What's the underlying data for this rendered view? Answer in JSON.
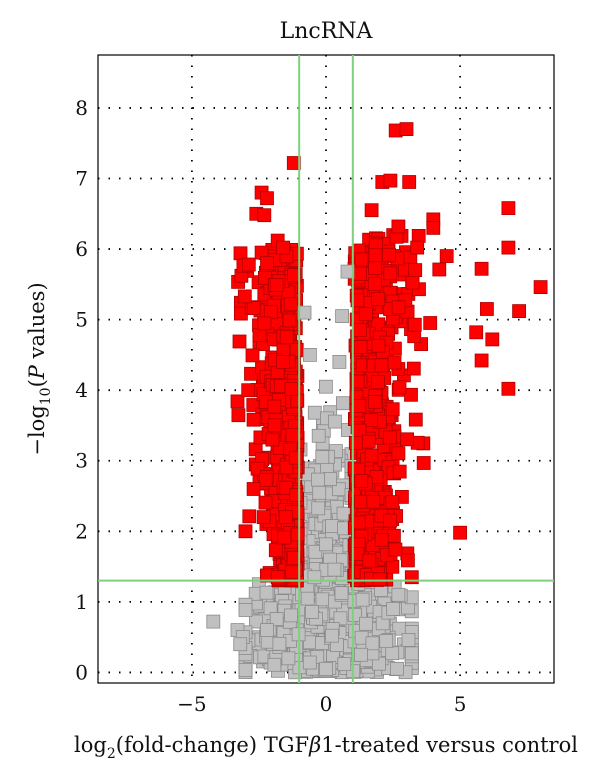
{
  "chart_data": {
    "type": "scatter",
    "title": "LncRNA",
    "xlabel": {
      "prefix": "log",
      "sub": "2",
      "rest": "(fold-change) TGF",
      "beta": "β",
      "suffix": "1-treated versus control"
    },
    "ylabel": {
      "prefix": "−log",
      "sub": "10",
      "open": "(",
      "italic": "P",
      "suffix": " values)"
    },
    "xlim": [
      -8.5,
      8.5
    ],
    "ylim": [
      -0.15,
      8.75
    ],
    "x_ticks": [
      -5,
      0,
      5
    ],
    "x_tick_labels": [
      "−5",
      "0",
      "5"
    ],
    "y_ticks": [
      0,
      1,
      2,
      3,
      4,
      5,
      6,
      7,
      8
    ],
    "y_tick_labels": [
      "0",
      "1",
      "2",
      "3",
      "4",
      "5",
      "6",
      "7",
      "8"
    ],
    "grid": true,
    "thresholds": {
      "fold_change_log2": [
        -1,
        1
      ],
      "neg_log10_p": 1.3
    },
    "colors": {
      "significant": "#ff0000",
      "significant_edge": "#b00000",
      "not_significant": "#c0c0c0",
      "not_significant_edge": "#8a8a8a",
      "threshold_line": "#7fcf7f",
      "grid": "#000000"
    },
    "series": [
      {
        "name": "",
        "color": "#ff0000",
        "points": [
          [
            -1.2,
            7.22
          ],
          [
            -2.4,
            6.8
          ],
          [
            -2.2,
            6.72
          ],
          [
            -2.6,
            6.5
          ],
          [
            -2.3,
            6.48
          ],
          [
            -1.8,
            6.12
          ],
          [
            -1.6,
            6.02
          ],
          [
            -2.4,
            5.95
          ],
          [
            2.6,
            7.68
          ],
          [
            3.0,
            7.7
          ],
          [
            2.1,
            6.95
          ],
          [
            2.4,
            6.97
          ],
          [
            3.1,
            6.95
          ],
          [
            4.0,
            6.42
          ],
          [
            4.0,
            6.3
          ],
          [
            6.8,
            6.58
          ],
          [
            6.8,
            6.02
          ],
          [
            2.7,
            6.32
          ],
          [
            1.7,
            6.55
          ],
          [
            3.4,
            6.02
          ],
          [
            4.5,
            5.9
          ],
          [
            5.8,
            5.72
          ],
          [
            8.0,
            5.46
          ],
          [
            7.2,
            5.12
          ],
          [
            6.0,
            5.15
          ],
          [
            5.6,
            4.82
          ],
          [
            6.2,
            4.72
          ],
          [
            5.8,
            4.42
          ],
          [
            6.8,
            4.02
          ],
          [
            5.0,
            1.98
          ],
          [
            3.2,
            1.35
          ],
          [
            2.0,
            1.32
          ],
          [
            -1.8,
            1.35
          ],
          [
            -2.9,
            4.0
          ],
          [
            -3.0,
            2.0
          ],
          [
            -2.7,
            2.6
          ],
          [
            -2.2,
            5.8
          ],
          [
            -2.0,
            3.3
          ],
          [
            -1.6,
            4.4
          ],
          [
            -1.5,
            2.2
          ]
        ]
      },
      {
        "name": "",
        "color": "#c0c0c0",
        "points": [
          [
            0.8,
            5.68
          ],
          [
            0.6,
            5.05
          ],
          [
            -0.8,
            5.1
          ],
          [
            -0.6,
            4.5
          ],
          [
            0.5,
            4.4
          ],
          [
            -3.3,
            0.6
          ],
          [
            -3.1,
            0.5
          ],
          [
            -3.2,
            0.4
          ],
          [
            -4.2,
            0.72
          ],
          [
            -2.2,
            0.6
          ],
          [
            -1.4,
            0.2
          ],
          [
            1.3,
            0.25
          ],
          [
            2.7,
            1.1
          ],
          [
            2.5,
            0.9
          ],
          [
            0.0,
            0.05
          ]
        ]
      }
    ]
  }
}
